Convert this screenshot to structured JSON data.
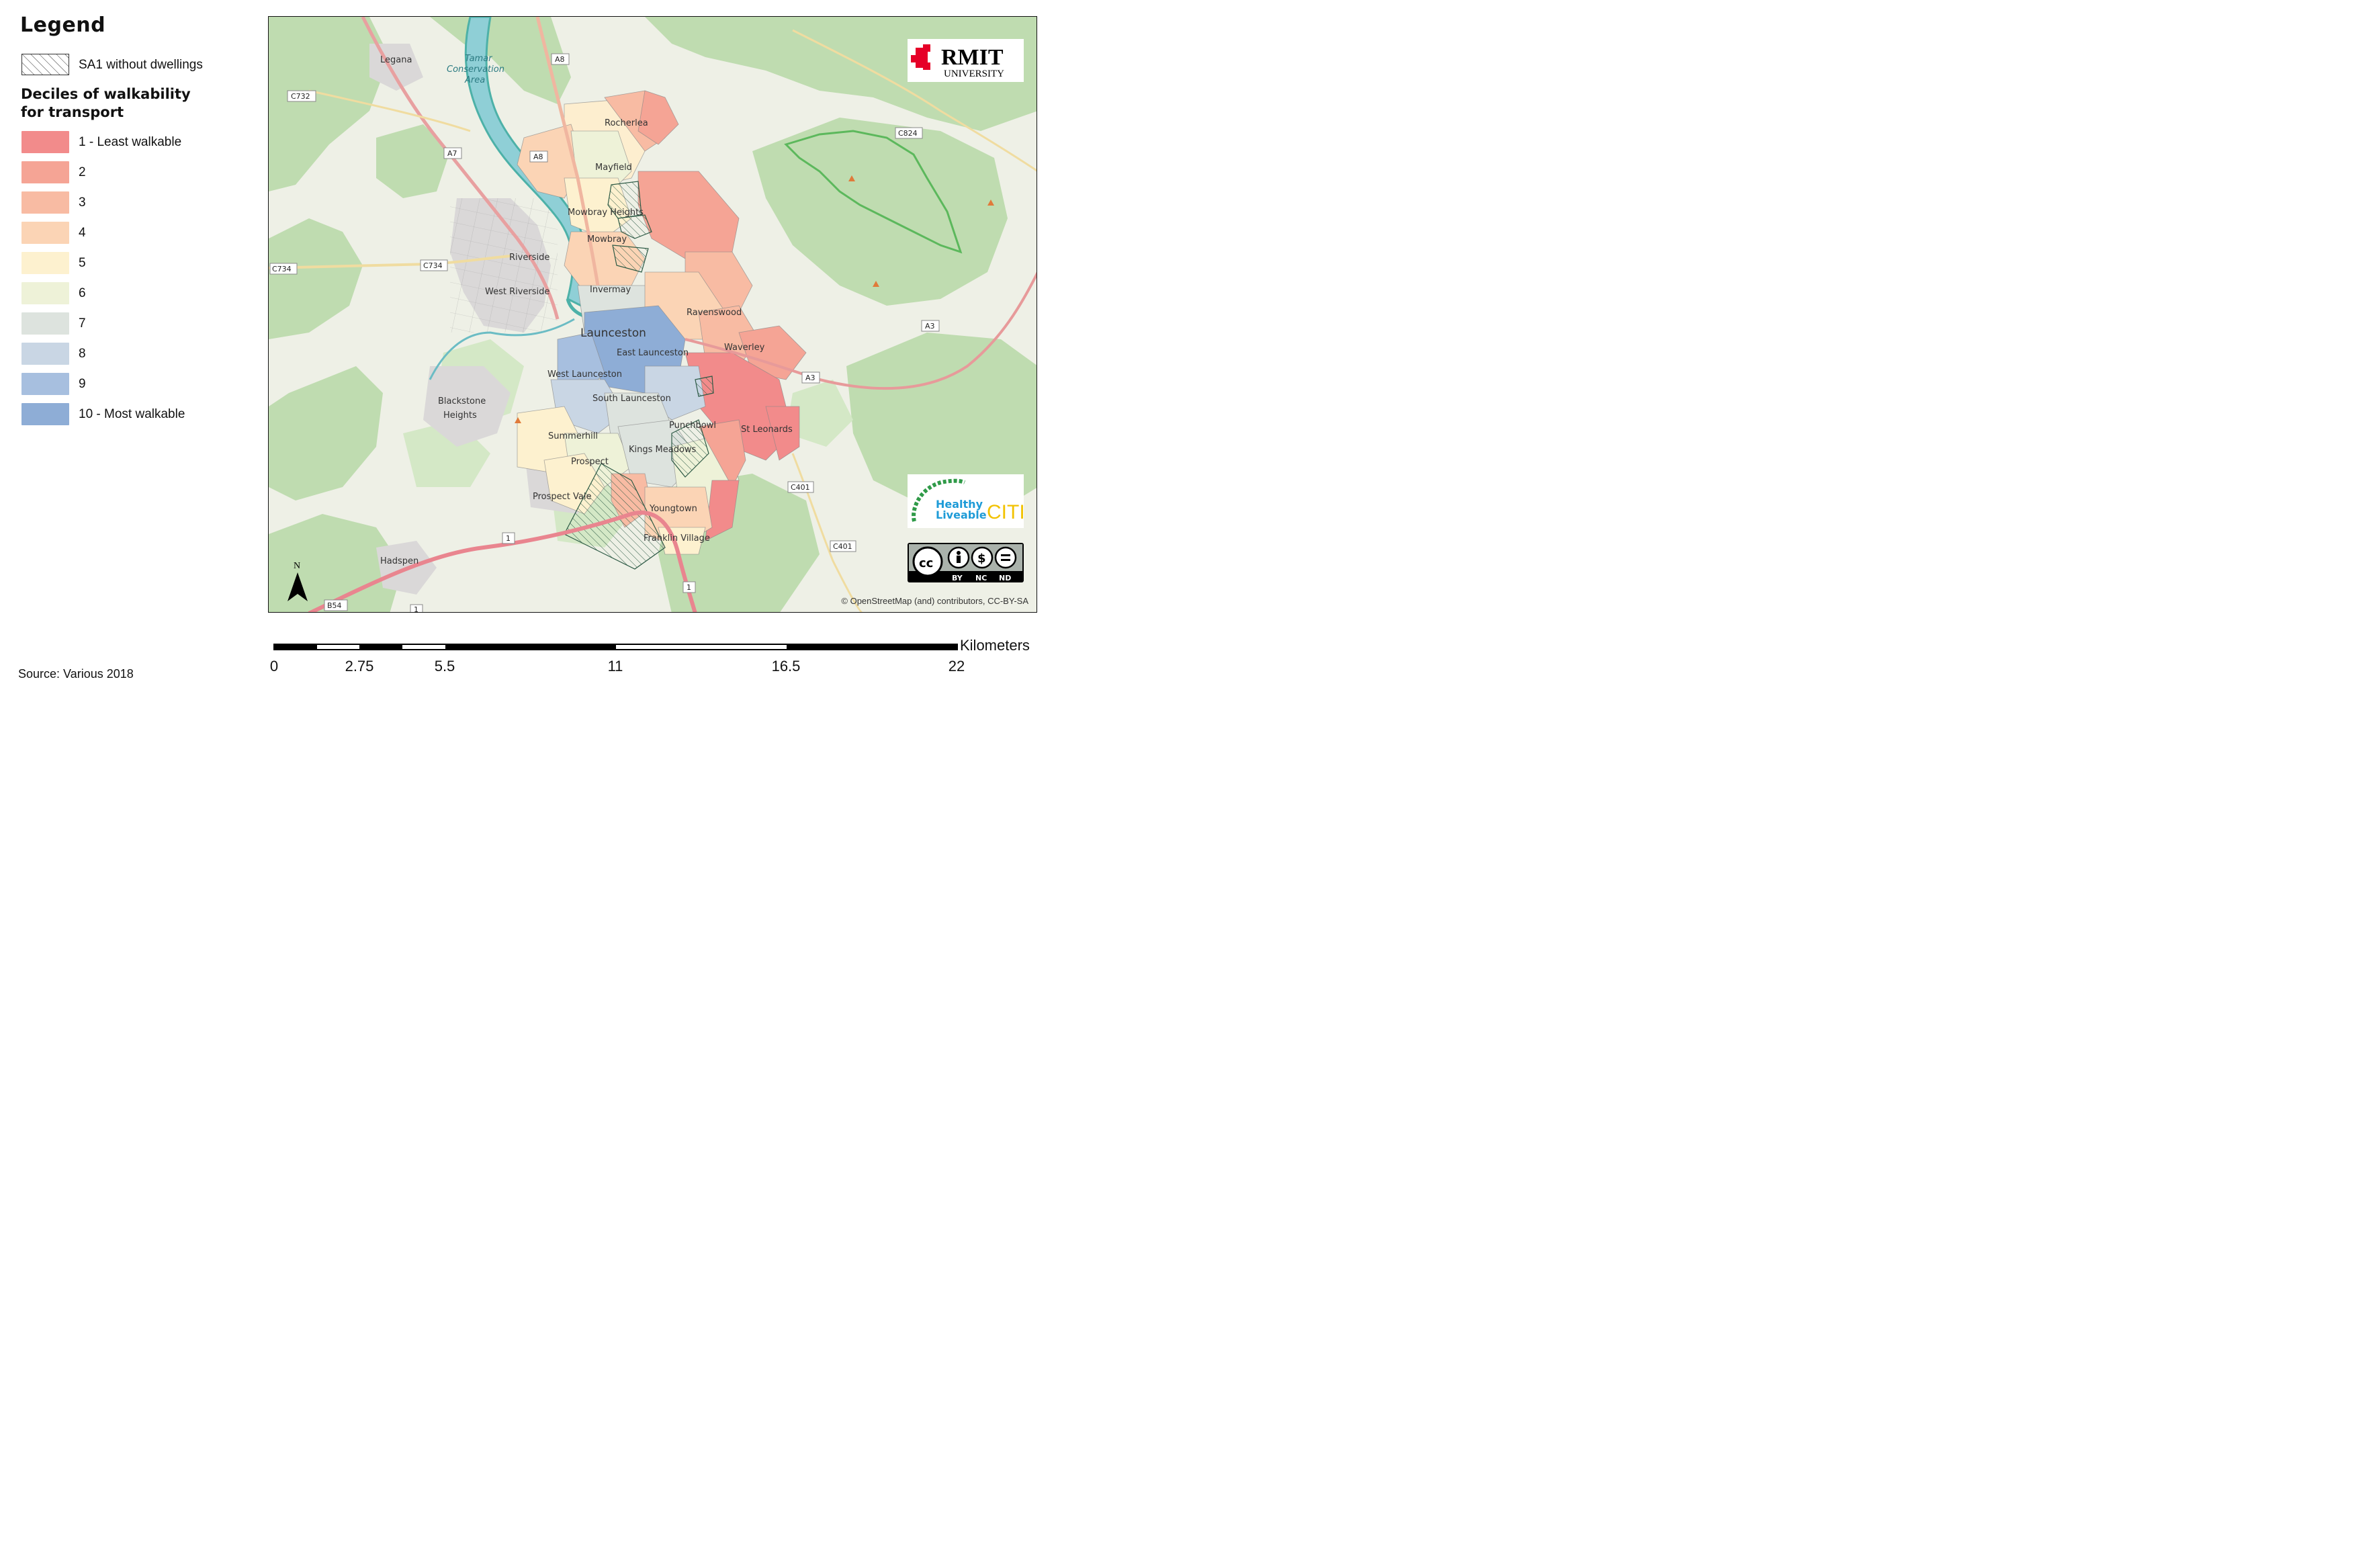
{
  "legend": {
    "title": "Legend",
    "hatch_label": "SA1 without dwellings",
    "decile_heading_line1": "Deciles of walkability",
    "decile_heading_line2": "for transport",
    "deciles": [
      {
        "label": "1 - Least walkable",
        "color": "#f28b8b"
      },
      {
        "label": "2",
        "color": "#f5a495"
      },
      {
        "label": "3",
        "color": "#f8bba3"
      },
      {
        "label": "4",
        "color": "#fbd4b5"
      },
      {
        "label": "5",
        "color": "#fdf1cf"
      },
      {
        "label": "6",
        "color": "#eef2d8"
      },
      {
        "label": "7",
        "color": "#dde3de"
      },
      {
        "label": "8",
        "color": "#c9d6e4"
      },
      {
        "label": "9",
        "color": "#a7bfdf"
      },
      {
        "label": "10 - Most walkable",
        "color": "#8eadd6"
      }
    ]
  },
  "map": {
    "place_labels": [
      "Legana",
      "Tamar",
      "Conservation",
      "Area",
      "Riverside",
      "West Riverside",
      "Launceston",
      "East Launceston",
      "West Launceston",
      "South Launceston",
      "Rocherlea",
      "Mayfield",
      "Mowbray Heights",
      "Mowbray",
      "Invermay",
      "Ravenswood",
      "Waverley",
      "St Leonards",
      "Punchbowl",
      "Kings Meadows",
      "Summerhill",
      "Prospect",
      "Prospect Vale",
      "Youngtown",
      "Franklin Village",
      "Blackstone",
      "Heights",
      "Hadspen"
    ],
    "road_labels": [
      "A8",
      "A8",
      "A7",
      "C732",
      "C734",
      "C734",
      "C824",
      "A3",
      "A3",
      "C401",
      "C401",
      "B54",
      "1",
      "1",
      "1"
    ],
    "north_label": "N",
    "attribution": "© OpenStreetMap (and) contributors, CC-BY-SA"
  },
  "logos": {
    "rmit_name": "RMIT",
    "rmit_sub": "UNIVERSITY",
    "hlc_line1": "Healthy",
    "hlc_line2": "Liveable",
    "hlc_cities": "CITIES",
    "cc_tags": [
      "BY",
      "NC",
      "ND"
    ]
  },
  "scalebar": {
    "unit": "Kilometers",
    "ticks": [
      "0",
      "2.75",
      "5.5",
      "11",
      "16.5",
      "22"
    ]
  },
  "source": "Source: Various 2018"
}
